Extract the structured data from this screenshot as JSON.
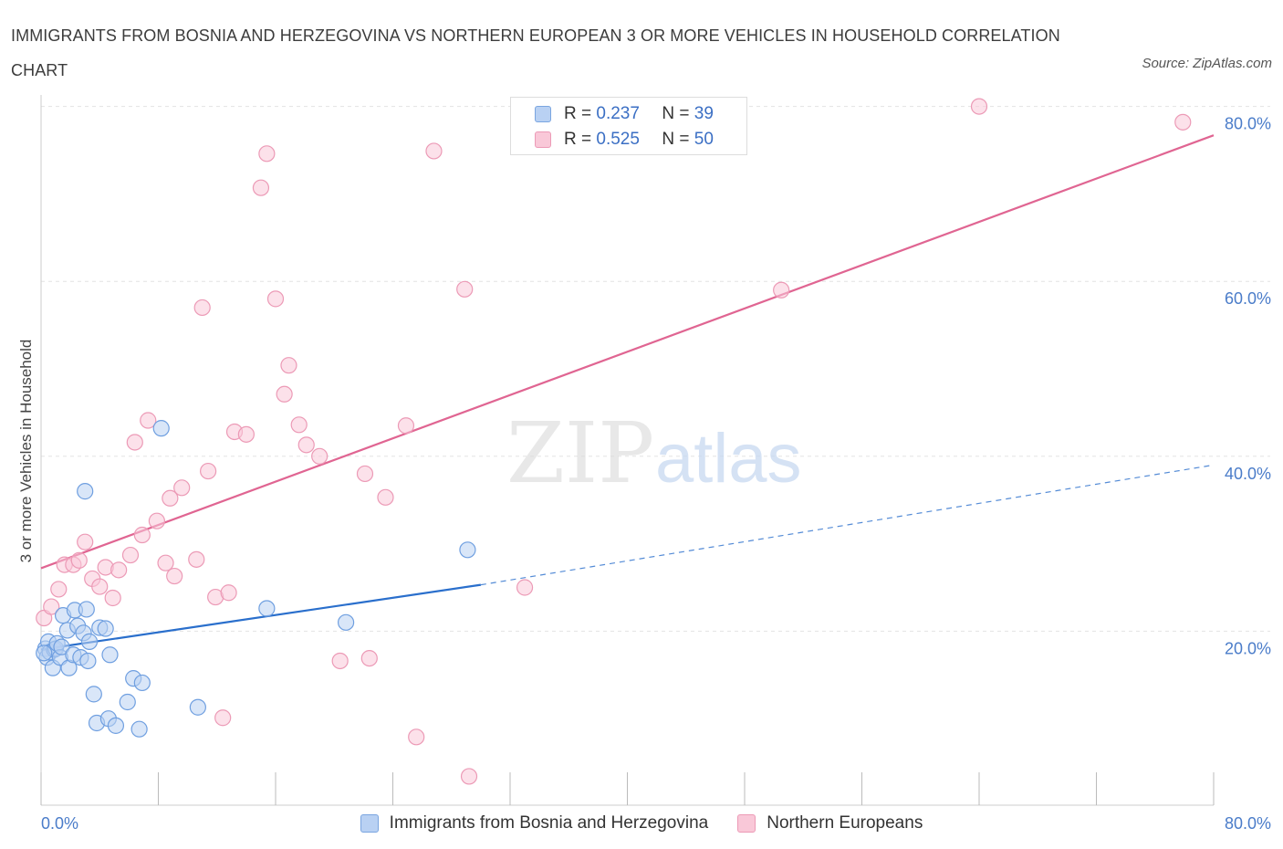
{
  "title": "IMMIGRANTS FROM BOSNIA AND HERZEGOVINA VS NORTHERN EUROPEAN 3 OR MORE VEHICLES IN HOUSEHOLD CORRELATION CHART",
  "source": "Source: ZipAtlas.com",
  "watermark": {
    "zip": "ZIP",
    "atlas": "atlas"
  },
  "legend": {
    "r_label": "R =",
    "n_label": "N =",
    "series1": {
      "r": "0.237",
      "n": "39"
    },
    "series2": {
      "r": "0.525",
      "n": "50"
    }
  },
  "colors": {
    "blue_fill": "#b9d1f3",
    "blue_stroke": "#6f9fe0",
    "blue_line": "#2a6fcc",
    "pink_fill": "#f9c8d8",
    "pink_stroke": "#ec9ab6",
    "pink_line": "#e06592",
    "grid": "#e3e3e3",
    "axis_text": "#4a7cc9"
  },
  "chart_data": {
    "type": "scatter",
    "title": "IMMIGRANTS FROM BOSNIA AND HERZEGOVINA VS NORTHERN EUROPEAN 3 OR MORE VEHICLES IN HOUSEHOLD CORRELATION CHART",
    "xlabel": "",
    "ylabel": "3 or more Vehicles in Household",
    "xlim": [
      0,
      80
    ],
    "ylim": [
      0,
      80
    ],
    "x_tick_labels": [
      "0.0%",
      "80.0%"
    ],
    "y_ticks": [
      20,
      40,
      60,
      80
    ],
    "y_tick_labels": [
      "20.0%",
      "40.0%",
      "60.0%",
      "80.0%"
    ],
    "grid": true,
    "legend_position": "top-center and bottom",
    "series": [
      {
        "name": "Immigrants from Bosnia and Herzegovina",
        "color": "blue",
        "r": 0.237,
        "n": 39,
        "trend": {
          "x1": 0,
          "y1": 17.9,
          "x2": 30,
          "y2": 25.3,
          "dashed_to_x": 80,
          "dashed_to_y": 39.0
        },
        "points": [
          [
            0.3,
            18.0
          ],
          [
            0.4,
            17.0
          ],
          [
            0.5,
            18.8
          ],
          [
            0.6,
            17.6
          ],
          [
            0.8,
            15.8
          ],
          [
            0.9,
            17.9
          ],
          [
            1.0,
            18.0
          ],
          [
            1.1,
            18.6
          ],
          [
            1.3,
            17.0
          ],
          [
            1.4,
            18.2
          ],
          [
            1.5,
            21.8
          ],
          [
            1.8,
            20.1
          ],
          [
            1.9,
            15.8
          ],
          [
            2.2,
            17.3
          ],
          [
            2.3,
            22.4
          ],
          [
            2.5,
            20.6
          ],
          [
            2.7,
            17.0
          ],
          [
            2.9,
            19.8
          ],
          [
            3.1,
            22.5
          ],
          [
            3.2,
            16.6
          ],
          [
            3.3,
            18.8
          ],
          [
            3.0,
            36.0
          ],
          [
            3.6,
            12.8
          ],
          [
            3.8,
            9.5
          ],
          [
            4.0,
            20.4
          ],
          [
            4.4,
            20.3
          ],
          [
            4.6,
            10.0
          ],
          [
            4.7,
            17.3
          ],
          [
            5.1,
            9.2
          ],
          [
            5.9,
            11.9
          ],
          [
            6.3,
            14.6
          ],
          [
            6.7,
            8.8
          ],
          [
            6.9,
            14.1
          ],
          [
            8.2,
            43.2
          ],
          [
            10.7,
            11.3
          ],
          [
            15.4,
            22.6
          ],
          [
            20.8,
            21.0
          ],
          [
            29.1,
            29.3
          ],
          [
            0.2,
            17.5
          ]
        ]
      },
      {
        "name": "Northern Europeans",
        "color": "pink",
        "r": 0.525,
        "n": 50,
        "trend": {
          "x1": 0,
          "y1": 27.2,
          "x2": 80,
          "y2": 76.7
        },
        "points": [
          [
            0.2,
            21.5
          ],
          [
            0.7,
            22.8
          ],
          [
            1.2,
            24.8
          ],
          [
            1.6,
            27.6
          ],
          [
            2.2,
            27.6
          ],
          [
            2.6,
            28.1
          ],
          [
            3.0,
            30.2
          ],
          [
            3.5,
            26.0
          ],
          [
            4.0,
            25.1
          ],
          [
            4.4,
            27.3
          ],
          [
            4.9,
            23.8
          ],
          [
            5.3,
            27.0
          ],
          [
            6.1,
            28.7
          ],
          [
            6.4,
            41.6
          ],
          [
            6.9,
            31.0
          ],
          [
            7.3,
            44.1
          ],
          [
            7.9,
            32.6
          ],
          [
            8.5,
            27.8
          ],
          [
            8.8,
            35.2
          ],
          [
            9.1,
            26.3
          ],
          [
            9.6,
            36.4
          ],
          [
            10.6,
            28.2
          ],
          [
            11.0,
            57.0
          ],
          [
            11.4,
            38.3
          ],
          [
            11.9,
            23.9
          ],
          [
            12.4,
            10.1
          ],
          [
            12.8,
            24.4
          ],
          [
            13.2,
            42.8
          ],
          [
            14.0,
            42.5
          ],
          [
            15.0,
            70.7
          ],
          [
            15.4,
            74.6
          ],
          [
            16.0,
            58.0
          ],
          [
            16.6,
            47.1
          ],
          [
            16.9,
            50.4
          ],
          [
            17.6,
            43.6
          ],
          [
            18.1,
            41.3
          ],
          [
            19.0,
            40.0
          ],
          [
            20.4,
            16.6
          ],
          [
            22.1,
            38.0
          ],
          [
            22.4,
            16.9
          ],
          [
            23.5,
            35.3
          ],
          [
            24.9,
            43.5
          ],
          [
            25.6,
            7.9
          ],
          [
            26.8,
            74.9
          ],
          [
            28.9,
            59.1
          ],
          [
            29.2,
            3.4
          ],
          [
            33.0,
            25.0
          ],
          [
            50.5,
            59.0
          ],
          [
            64.0,
            80.0
          ],
          [
            77.9,
            78.2
          ]
        ]
      }
    ]
  },
  "bottom_legend": {
    "series1": "Immigrants from Bosnia and Herzegovina",
    "series2": "Northern Europeans"
  }
}
